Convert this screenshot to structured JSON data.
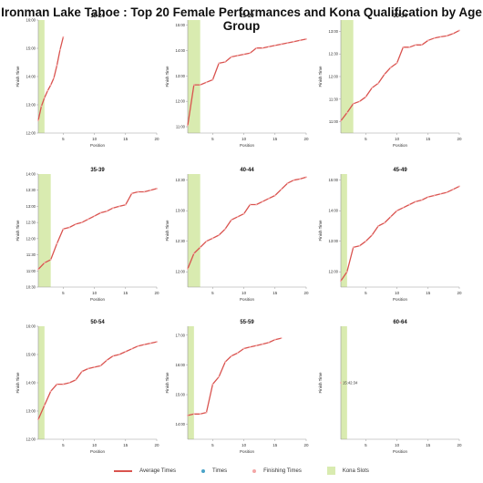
{
  "title": "Ironman Lake Tahoe : Top 20 Female Performances and Kona Qualification by Age Group",
  "legend": {
    "average_times": "Average Times",
    "times": "Times",
    "finishing_times": "Finishing Times",
    "kona_slots": "Kona Slots"
  },
  "colors": {
    "line": "#d9534f",
    "kona": "#d9ebb0",
    "times": "#4aa3c8",
    "finishing": "#f4a6a6"
  },
  "chart_data": [
    {
      "type": "line",
      "title": "18-24",
      "xlabel": "Position",
      "ylabel": "Finish Time",
      "xlim": [
        1,
        20
      ],
      "xticks": [
        5,
        10,
        15,
        20
      ],
      "ylim": [
        12.0,
        16.0
      ],
      "yticks": [
        "12:00",
        "13:00",
        "14:00",
        "15:00",
        "16:00"
      ],
      "kona_slots": 1,
      "x": [
        1,
        1.5,
        2,
        2.5,
        3,
        3.5,
        4,
        4.5,
        5
      ],
      "y": [
        12.45,
        12.95,
        13.25,
        13.5,
        13.7,
        13.95,
        14.4,
        14.95,
        15.4
      ]
    },
    {
      "type": "line",
      "title": "25-29",
      "xlabel": "Position",
      "ylabel": "Finish Time",
      "xlim": [
        1,
        20
      ],
      "xticks": [
        5,
        10,
        15,
        20
      ],
      "ylim": [
        10.75,
        15.2
      ],
      "yticks": [
        "11:00",
        "12:00",
        "13:00",
        "14:00",
        "15:00"
      ],
      "kona_slots": 2,
      "x": [
        1,
        2,
        3,
        4,
        5,
        6,
        7,
        8,
        9,
        10,
        11,
        12,
        13,
        14,
        15,
        16,
        17,
        18,
        19,
        20
      ],
      "y": [
        11.05,
        12.65,
        12.65,
        12.75,
        12.85,
        13.5,
        13.55,
        13.75,
        13.8,
        13.85,
        13.9,
        14.1,
        14.1,
        14.15,
        14.2,
        14.25,
        14.3,
        14.35,
        14.4,
        14.45
      ]
    },
    {
      "type": "line",
      "title": "30-34",
      "xlabel": "Position",
      "ylabel": "Finish Time",
      "xlim": [
        1,
        20
      ],
      "xticks": [
        5,
        10,
        15,
        20
      ],
      "ylim": [
        10.75,
        13.25
      ],
      "yticks": [
        "11:00",
        "11:30",
        "12:00",
        "12:30",
        "13:00"
      ],
      "kona_slots": 2,
      "x": [
        1,
        2,
        3,
        4,
        5,
        6,
        7,
        8,
        9,
        10,
        11,
        12,
        13,
        14,
        15,
        16,
        17,
        18,
        19,
        20
      ],
      "y": [
        11.02,
        11.2,
        11.4,
        11.45,
        11.55,
        11.75,
        11.85,
        12.05,
        12.2,
        12.3,
        12.65,
        12.65,
        12.7,
        12.7,
        12.8,
        12.85,
        12.88,
        12.9,
        12.95,
        13.02
      ]
    },
    {
      "type": "line",
      "title": "35-39",
      "xlabel": "Position",
      "ylabel": "Finish Time",
      "xlim": [
        1,
        20
      ],
      "xticks": [
        5,
        10,
        15,
        20
      ],
      "ylim": [
        10.5,
        14.0
      ],
      "yticks": [
        "10:30",
        "11:00",
        "11:30",
        "12:00",
        "12:30",
        "13:00",
        "13:30",
        "14:00"
      ],
      "kona_slots": 2,
      "x": [
        1,
        2,
        3,
        4,
        5,
        6,
        7,
        8,
        9,
        10,
        11,
        12,
        13,
        14,
        15,
        16,
        17,
        18,
        19,
        20
      ],
      "y": [
        11.05,
        11.25,
        11.35,
        11.85,
        12.3,
        12.35,
        12.45,
        12.5,
        12.6,
        12.7,
        12.8,
        12.85,
        12.95,
        13.0,
        13.05,
        13.4,
        13.45,
        13.45,
        13.5,
        13.55
      ]
    },
    {
      "type": "line",
      "title": "40-44",
      "xlabel": "Position",
      "ylabel": "Finish Time",
      "xlim": [
        1,
        20
      ],
      "xticks": [
        5,
        10,
        15,
        20
      ],
      "ylim": [
        11.75,
        13.6
      ],
      "yticks": [
        "12:00",
        "12:30",
        "13:00",
        "13:30"
      ],
      "kona_slots": 2,
      "x": [
        1,
        2,
        3,
        4,
        5,
        6,
        7,
        8,
        9,
        10,
        11,
        12,
        13,
        14,
        15,
        16,
        17,
        18,
        19,
        20
      ],
      "y": [
        12.05,
        12.3,
        12.4,
        12.5,
        12.55,
        12.6,
        12.7,
        12.85,
        12.9,
        12.95,
        13.1,
        13.1,
        13.15,
        13.2,
        13.25,
        13.35,
        13.45,
        13.5,
        13.52,
        13.55
      ]
    },
    {
      "type": "line",
      "title": "45-49",
      "xlabel": "Position",
      "ylabel": "Finish Time",
      "xlim": [
        1,
        20
      ],
      "xticks": [
        5,
        10,
        15,
        20
      ],
      "ylim": [
        11.5,
        15.2
      ],
      "yticks": [
        "12:00",
        "13:00",
        "14:00",
        "15:00"
      ],
      "kona_slots": 1,
      "x": [
        1,
        2,
        3,
        4,
        5,
        6,
        7,
        8,
        9,
        10,
        11,
        12,
        13,
        14,
        15,
        16,
        17,
        18,
        19,
        20
      ],
      "y": [
        11.7,
        12.0,
        12.8,
        12.85,
        13.0,
        13.2,
        13.5,
        13.6,
        13.8,
        14.0,
        14.1,
        14.2,
        14.3,
        14.35,
        14.45,
        14.5,
        14.55,
        14.6,
        14.7,
        14.8
      ]
    },
    {
      "type": "line",
      "title": "50-54",
      "xlabel": "Position",
      "ylabel": "Finish Time",
      "xlim": [
        1,
        20
      ],
      "xticks": [
        5,
        10,
        15,
        20
      ],
      "ylim": [
        12.0,
        16.0
      ],
      "yticks": [
        "12:00",
        "13:00",
        "14:00",
        "15:00",
        "16:00"
      ],
      "kona_slots": 1,
      "x": [
        1,
        2,
        3,
        4,
        5,
        6,
        7,
        8,
        9,
        10,
        11,
        12,
        13,
        14,
        15,
        16,
        17,
        18,
        19,
        20
      ],
      "y": [
        12.7,
        13.2,
        13.7,
        13.95,
        13.95,
        14.0,
        14.1,
        14.4,
        14.5,
        14.55,
        14.6,
        14.8,
        14.95,
        15.0,
        15.1,
        15.2,
        15.3,
        15.35,
        15.4,
        15.45
      ]
    },
    {
      "type": "line",
      "title": "55-59",
      "xlabel": "Position",
      "ylabel": "Finish Time",
      "xlim": [
        1,
        20
      ],
      "xticks": [
        5,
        10,
        15,
        20
      ],
      "ylim": [
        13.5,
        17.3
      ],
      "yticks": [
        "14:00",
        "15:00",
        "16:00",
        "17:00"
      ],
      "kona_slots": 1,
      "x": [
        1,
        2,
        3,
        4,
        5,
        6,
        7,
        8,
        9,
        10,
        11,
        12,
        13,
        14,
        15,
        16
      ],
      "y": [
        14.3,
        14.35,
        14.35,
        14.4,
        15.35,
        15.6,
        16.1,
        16.3,
        16.4,
        16.55,
        16.6,
        16.65,
        16.7,
        16.75,
        16.85,
        16.9
      ]
    },
    {
      "type": "line",
      "title": "60-64",
      "xlabel": "Position",
      "ylabel": "Finish Time",
      "xlim": [
        1,
        20
      ],
      "xticks": [
        5,
        10,
        15,
        20
      ],
      "ylim": [
        0,
        1
      ],
      "yticks": [],
      "kona_slots": 1,
      "x": [
        1
      ],
      "y": [
        0.5
      ],
      "point_label": "15:42:34"
    }
  ]
}
